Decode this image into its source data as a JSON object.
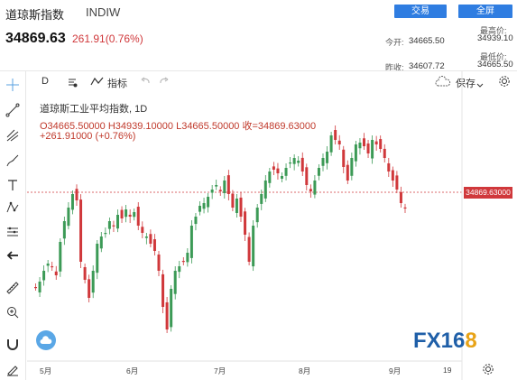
{
  "header": {
    "title": "道琼斯指数",
    "code": "INDIW",
    "trade_button": "交易",
    "all_button": "全屏",
    "price": "34869.63",
    "change": "261.91(0.76%)"
  },
  "stats": {
    "open_label": "今开:",
    "open_value": "34665.50",
    "prev_close_label": "昨收:",
    "prev_close_value": "34607.72",
    "high_label": "最高价:",
    "high_value": "34939.10",
    "low_label": "最低价:",
    "low_value": "34665.50"
  },
  "toolbar": {
    "period": "D",
    "indicators": "指标",
    "save": "保存"
  },
  "legend": {
    "name": "道琼斯工业平均指数",
    "interval": "1D",
    "ohlc": "O34665.50000  H34939.10000  L34665.50000  收=34869.63000",
    "change": "+261.91000 (+0.76%)"
  },
  "chart": {
    "last_price_tag": "34869.63000",
    "x_ticks": [
      "5月",
      "6月",
      "7月",
      "8月",
      "9月",
      "19"
    ],
    "up_color": "#3c9a56",
    "down_color": "#d0383b",
    "logo": "FX168"
  },
  "tools": [
    "crosshair-icon",
    "trendline-icon",
    "fork-icon",
    "brush-icon",
    "text-icon",
    "pattern-icon",
    "measure-icon",
    "back-arrow-icon",
    "ruler-icon",
    "zoom-in-icon",
    "magnet-icon",
    "lock-edit-icon"
  ]
}
